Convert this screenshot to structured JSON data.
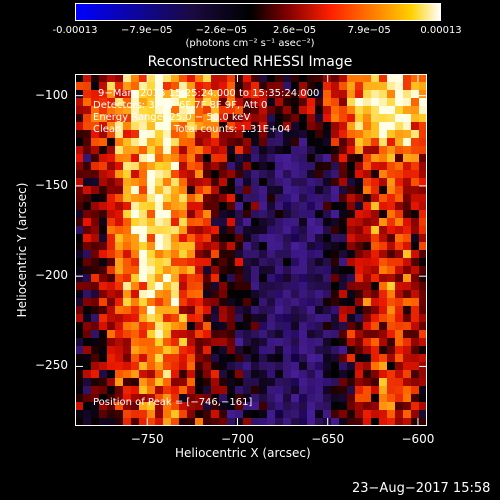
{
  "colorbar": {
    "ticks": [
      "-0.00013",
      "−7.9e−05",
      "−2.6e−05",
      "2.6e−05",
      "7.9e−05",
      "0.00013"
    ],
    "tick_values": [
      -0.00013,
      -7.9e-05,
      -2.6e-05,
      2.6e-05,
      7.9e-05,
      0.00013
    ],
    "range": [
      -0.00013,
      0.00013
    ],
    "units": "(photons cm⁻² s⁻¹ asec⁻²)",
    "colors": [
      "#0000ff",
      "#000000",
      "#800000",
      "#ff2000",
      "#ff8000",
      "#ffd000",
      "#ffffff"
    ]
  },
  "chart_data": {
    "type": "heatmap",
    "title": "Reconstructed RHESSI Image",
    "xlabel": "Heliocentric X (arcsec)",
    "ylabel": "Heliocentric Y (arcsec)",
    "xlim": [
      -790,
      -595
    ],
    "ylim": [
      -283,
      -88
    ],
    "xticks": [
      -750,
      -700,
      -650,
      -600
    ],
    "xtick_labels": [
      "−750",
      "−700",
      "−650",
      "−600"
    ],
    "yticks": [
      -100,
      -150,
      -200,
      -250
    ],
    "ytick_labels": [
      "−100",
      "−150",
      "−200",
      "−250"
    ],
    "peak": [
      -746,
      -161
    ],
    "annotations": {
      "time": "9−Mar−2015 15:25:24.000 to 15:35:24.000",
      "detectors": "Detectors: 3F 5F 6F 7F 8F 9F, Att 0",
      "energy": "Energy Range: 25.0 − 50.0 keV",
      "method": "Clean",
      "counts": "Total counts: 1.31E+04",
      "peak_label": "Position of Peak = [−746,−161]"
    }
  },
  "footer": {
    "timestamp": "23−Aug−2017 15:58"
  }
}
